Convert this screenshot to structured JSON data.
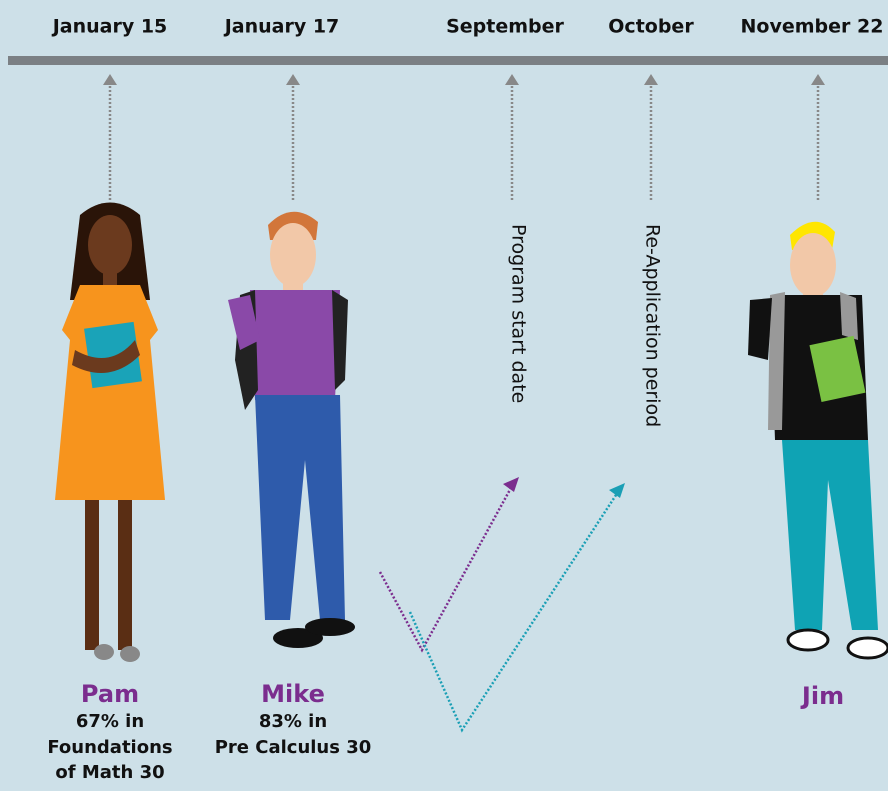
{
  "timeline": [
    {
      "label": "January 15"
    },
    {
      "label": "January 17"
    },
    {
      "label": "September"
    },
    {
      "label": "October"
    },
    {
      "label": "November 22"
    }
  ],
  "milestones": [
    {
      "label": "Program start date"
    },
    {
      "label": "Re-Application period"
    }
  ],
  "people": [
    {
      "name": "Pam",
      "detail": [
        "67% in",
        "Foundations",
        "of Math 30"
      ]
    },
    {
      "name": "Mike",
      "detail": [
        "83% in",
        "Pre Calculus 30"
      ]
    },
    {
      "name": "Jim"
    }
  ]
}
